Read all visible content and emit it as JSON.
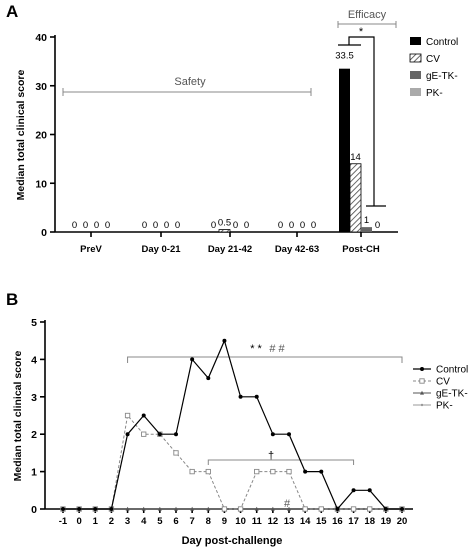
{
  "chart_data": [
    {
      "type": "bar",
      "panel": "A",
      "ylabel": "Median total clinical score",
      "ylim": [
        0,
        40
      ],
      "yticks": [
        "0",
        "10",
        "20",
        "30",
        "40"
      ],
      "categories": [
        "PreV",
        "Day 0-21",
        "Day 21-42",
        "Day 42-63",
        "Post-CH"
      ],
      "series": [
        {
          "name": "Control",
          "color": "#000000",
          "values": [
            0,
            0,
            0,
            0,
            33.5
          ],
          "labels": [
            "0",
            "0",
            "0",
            "0",
            "33.5"
          ]
        },
        {
          "name": "CV",
          "color": "hatched",
          "values": [
            0,
            0,
            0.5,
            0,
            14
          ],
          "labels": [
            "0",
            "0",
            "0.5",
            "0",
            "14"
          ]
        },
        {
          "name": "gE-TK-",
          "color": "#666666",
          "values": [
            0,
            0,
            0,
            0,
            1
          ],
          "labels": [
            "0",
            "0",
            "0",
            "0",
            "1"
          ]
        },
        {
          "name": "PK-",
          "color": "#aaaaaa",
          "values": [
            0,
            0,
            0,
            0,
            0
          ],
          "labels": [
            "0",
            "0",
            "0",
            "0",
            "0"
          ]
        }
      ],
      "annotations": {
        "safety": "Safety",
        "efficacy": "Efficacy",
        "significance": "*"
      },
      "legend_position": "right"
    },
    {
      "type": "line",
      "panel": "B",
      "xlabel": "Day post-challenge",
      "ylabel": "Median total clinical score",
      "ylim": [
        0,
        5
      ],
      "yticks": [
        "0",
        "1",
        "2",
        "3",
        "4",
        "5"
      ],
      "x": [
        -1,
        0,
        1,
        2,
        3,
        4,
        5,
        6,
        7,
        8,
        9,
        10,
        11,
        12,
        13,
        14,
        15,
        16,
        17,
        18,
        19,
        20
      ],
      "xticks": [
        "-1",
        "0",
        "1",
        "2",
        "3",
        "4",
        "5",
        "6",
        "7",
        "8",
        "9",
        "10",
        "11",
        "12",
        "13",
        "14",
        "15",
        "16",
        "17",
        "18",
        "19",
        "20"
      ],
      "series": [
        {
          "name": "Control",
          "marker": "filled-circle",
          "values": [
            0,
            0,
            0,
            0,
            2,
            2.5,
            2,
            2,
            4,
            3.5,
            4.5,
            3,
            3,
            2,
            2,
            1,
            1,
            0,
            0.5,
            0.5,
            0,
            0
          ]
        },
        {
          "name": "CV",
          "marker": "open-square",
          "values": [
            0,
            0,
            0,
            0,
            2.5,
            2,
            2,
            1.5,
            1,
            1,
            0,
            0,
            1,
            1,
            1,
            0,
            0,
            0,
            0,
            0,
            0,
            0
          ]
        },
        {
          "name": "gE-TK-",
          "marker": "triangle",
          "values": [
            0,
            0,
            0,
            0,
            0,
            0,
            0,
            0,
            0,
            0,
            0,
            0,
            0,
            0,
            0,
            0,
            0,
            0,
            0,
            0,
            0,
            0
          ]
        },
        {
          "name": "PK-",
          "marker": "small-dot",
          "values": [
            0,
            0,
            0,
            0,
            0,
            0,
            0,
            0,
            0,
            0,
            0,
            0,
            0,
            0,
            0,
            0,
            0,
            0,
            0,
            0,
            0,
            0
          ]
        }
      ],
      "annotations": {
        "top_stars": "* *",
        "top_hashes": "# #",
        "dagger": "†",
        "hash_low": "#"
      },
      "legend_position": "right"
    }
  ]
}
